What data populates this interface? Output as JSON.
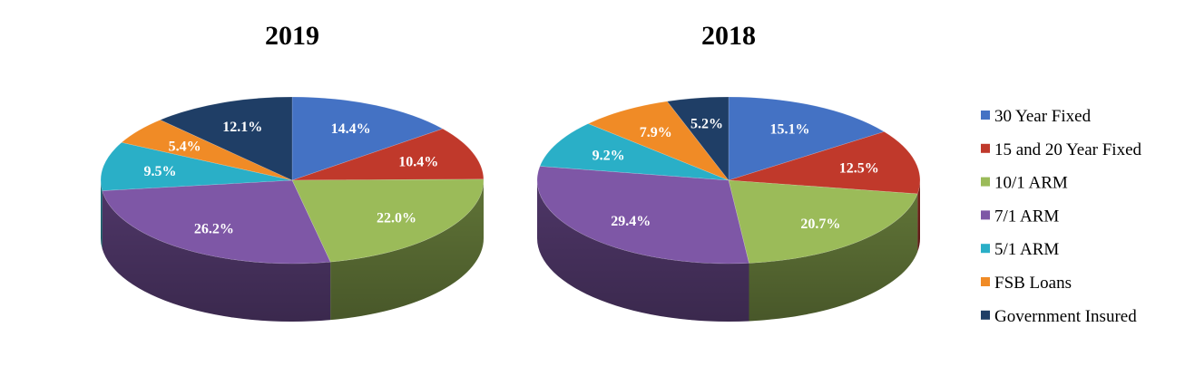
{
  "chart_data": [
    {
      "type": "pie",
      "title": "2019",
      "categories": [
        "30 Year Fixed",
        "15 and 20 Year Fixed",
        "10/1 ARM",
        "7/1 ARM",
        "5/1 ARM",
        "FSB Loans",
        "Government Insured"
      ],
      "values": [
        14.4,
        10.4,
        22.0,
        26.2,
        9.5,
        5.4,
        12.1
      ],
      "labels": [
        "14.4%",
        "10.4%",
        "22.0%",
        "26.2%",
        "9.5%",
        "5.4%",
        "12.1%"
      ]
    },
    {
      "type": "pie",
      "title": "2018",
      "categories": [
        "30 Year Fixed",
        "15 and 20 Year Fixed",
        "10/1 ARM",
        "7/1 ARM",
        "5/1 ARM",
        "FSB Loans",
        "Government Insured"
      ],
      "values": [
        15.1,
        12.5,
        20.7,
        29.4,
        9.2,
        7.9,
        5.2
      ],
      "labels": [
        "15.1%",
        "12.5%",
        "20.7%",
        "29.4%",
        "9.2%",
        "7.9%",
        "5.2%"
      ]
    }
  ],
  "legend": {
    "placement": "right",
    "items": [
      {
        "label": "30 Year Fixed",
        "color": "#4472C4"
      },
      {
        "label": "15 and 20 Year Fixed",
        "color": "#C0392B"
      },
      {
        "label": "10/1 ARM",
        "color": "#9BBB59"
      },
      {
        "label": "7/1 ARM",
        "color": "#7E57A6"
      },
      {
        "label": "5/1 ARM",
        "color": "#2AAFC7"
      },
      {
        "label": "FSB Loans",
        "color": "#F08B26"
      },
      {
        "label": "Government Insured",
        "color": "#1F3E66"
      }
    ]
  }
}
